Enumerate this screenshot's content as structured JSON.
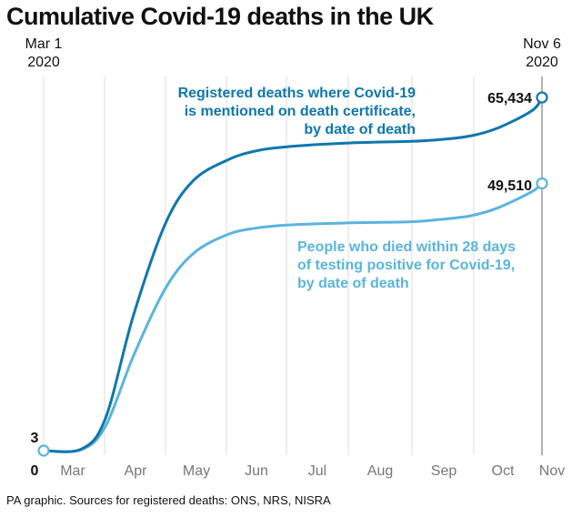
{
  "title": "Cumulative Covid-19 deaths in the UK",
  "source": "PA graphic. Sources for registered deaths: ONS, NRS, NISRA",
  "colors": {
    "registered": "#0e77ad",
    "tested": "#5ab4de",
    "grid": "#dddddd",
    "axis": "#999999"
  },
  "chart_data": {
    "type": "line",
    "x_ticks": [
      "Mar",
      "Apr",
      "May",
      "Jun",
      "Jul",
      "Aug",
      "Sep",
      "Oct",
      "Nov"
    ],
    "start_label": [
      "Mar 1",
      "2020"
    ],
    "end_label": [
      "Nov 6",
      "2020"
    ],
    "y_labels": {
      "zero": "0",
      "start": "3"
    },
    "ylim": [
      0,
      70000
    ],
    "series": [
      {
        "key": "registered",
        "label_lines": [
          "Registered deaths where Covid-19",
          "is mentioned on death certificate,",
          "by date of death"
        ],
        "end_value_label": "65,434",
        "points": [
          [
            "2020-03-01",
            3
          ],
          [
            "2020-03-20",
            300
          ],
          [
            "2020-04-01",
            6000
          ],
          [
            "2020-04-15",
            25000
          ],
          [
            "2020-05-01",
            42000
          ],
          [
            "2020-05-15",
            50000
          ],
          [
            "2020-06-01",
            53800
          ],
          [
            "2020-06-15",
            55500
          ],
          [
            "2020-07-01",
            56300
          ],
          [
            "2020-08-01",
            57000
          ],
          [
            "2020-09-01",
            57300
          ],
          [
            "2020-09-15",
            57600
          ],
          [
            "2020-10-01",
            58300
          ],
          [
            "2020-10-15",
            59800
          ],
          [
            "2020-11-01",
            63000
          ],
          [
            "2020-11-06",
            65434
          ]
        ]
      },
      {
        "key": "tested",
        "label_lines": [
          "People who died within 28 days",
          "of testing positive for Covid-19,",
          "by date of death"
        ],
        "end_value_label": "49,510",
        "points": [
          [
            "2020-03-01",
            3
          ],
          [
            "2020-03-20",
            200
          ],
          [
            "2020-04-01",
            4500
          ],
          [
            "2020-04-15",
            17500
          ],
          [
            "2020-05-01",
            30000
          ],
          [
            "2020-05-15",
            36500
          ],
          [
            "2020-06-01",
            40000
          ],
          [
            "2020-06-15",
            41200
          ],
          [
            "2020-07-01",
            41800
          ],
          [
            "2020-08-01",
            42200
          ],
          [
            "2020-09-01",
            42400
          ],
          [
            "2020-09-15",
            42800
          ],
          [
            "2020-10-01",
            43500
          ],
          [
            "2020-10-15",
            45000
          ],
          [
            "2020-11-01",
            48000
          ],
          [
            "2020-11-06",
            49510
          ]
        ]
      }
    ]
  }
}
